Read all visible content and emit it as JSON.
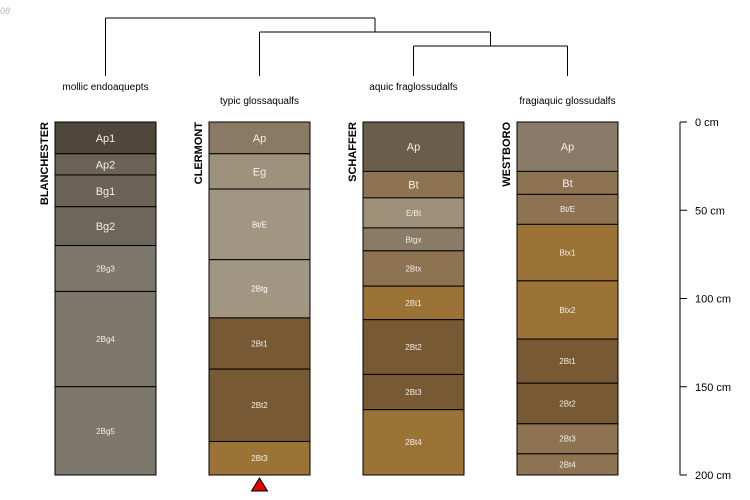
{
  "corner_label": "08",
  "chart_data": {
    "type": "soil-profile-sketch",
    "depth_unit": "cm",
    "depth_axis": {
      "min": 0,
      "max": 200,
      "ticks": [
        0,
        50,
        100,
        150,
        200
      ],
      "tick_labels": [
        "0 cm",
        "50 cm",
        "100 cm",
        "150 cm",
        "200 cm"
      ]
    },
    "dendrogram_order": [
      "BLANCHESTER",
      "CLERMONT",
      "SCHAFFER",
      "WESTBORO"
    ],
    "dendrogram_merges": [
      [
        "SCHAFFER",
        "WESTBORO"
      ],
      [
        "CLERMONT",
        "SCHAFFER+WESTBORO"
      ],
      [
        "BLANCHESTER",
        "CLERMONT+SCHAFFER+WESTBORO"
      ]
    ],
    "marker": {
      "profile": "CLERMONT",
      "shape": "triangle",
      "color": "#e00000"
    },
    "profiles": [
      {
        "name": "BLANCHESTER",
        "taxon": "mollic endoaquepts",
        "horizons": [
          {
            "name": "Ap1",
            "top": 0,
            "bottom": 18,
            "color": "#4f473a"
          },
          {
            "name": "Ap2",
            "top": 18,
            "bottom": 30,
            "color": "#6a6356"
          },
          {
            "name": "Bg1",
            "top": 30,
            "bottom": 48,
            "color": "#6a6356"
          },
          {
            "name": "Bg2",
            "top": 48,
            "bottom": 70,
            "color": "#6d665b"
          },
          {
            "name": "2Bg3",
            "top": 70,
            "bottom": 96,
            "color": "#7d786c"
          },
          {
            "name": "2Bg4",
            "top": 96,
            "bottom": 150,
            "color": "#7d786c"
          },
          {
            "name": "2Bg5",
            "top": 150,
            "bottom": 200,
            "color": "#7d786c"
          }
        ]
      },
      {
        "name": "CLERMONT",
        "taxon": "typic glossaqualfs",
        "horizons": [
          {
            "name": "Ap",
            "top": 0,
            "bottom": 18,
            "color": "#8a7a63"
          },
          {
            "name": "Eg",
            "top": 18,
            "bottom": 38,
            "color": "#9e927c"
          },
          {
            "name": "Bt/E",
            "top": 38,
            "bottom": 78,
            "color": "#a09682"
          },
          {
            "name": "2Btg",
            "top": 78,
            "bottom": 111,
            "color": "#a09682"
          },
          {
            "name": "2Bt1",
            "top": 111,
            "bottom": 140,
            "color": "#775934"
          },
          {
            "name": "2Bt2",
            "top": 140,
            "bottom": 181,
            "color": "#775934"
          },
          {
            "name": "2Bt3",
            "top": 181,
            "bottom": 200,
            "color": "#9c7336"
          }
        ]
      },
      {
        "name": "SCHAFFER",
        "taxon": "aquic fraglossudalfs",
        "horizons": [
          {
            "name": "Ap",
            "top": 0,
            "bottom": 28,
            "color": "#6b5d4b"
          },
          {
            "name": "Bt",
            "top": 28,
            "bottom": 43,
            "color": "#8e7353"
          },
          {
            "name": "E/Bt",
            "top": 43,
            "bottom": 60,
            "color": "#9f9179"
          },
          {
            "name": "Btgx",
            "top": 60,
            "bottom": 73,
            "color": "#8a7b66"
          },
          {
            "name": "2Btx",
            "top": 73,
            "bottom": 93,
            "color": "#8e7353"
          },
          {
            "name": "2Bt1",
            "top": 93,
            "bottom": 112,
            "color": "#9c7336"
          },
          {
            "name": "2Bt2",
            "top": 112,
            "bottom": 143,
            "color": "#775934"
          },
          {
            "name": "2Bt3",
            "top": 143,
            "bottom": 163,
            "color": "#775934"
          },
          {
            "name": "2Bt4",
            "top": 163,
            "bottom": 200,
            "color": "#9c7336"
          }
        ]
      },
      {
        "name": "WESTBORO",
        "taxon": "fragiaquic glossudalfs",
        "horizons": [
          {
            "name": "Ap",
            "top": 0,
            "bottom": 28,
            "color": "#8a7a68"
          },
          {
            "name": "Bt",
            "top": 28,
            "bottom": 41,
            "color": "#8e7353"
          },
          {
            "name": "Bt/E",
            "top": 41,
            "bottom": 58,
            "color": "#8e7353"
          },
          {
            "name": "Btx1",
            "top": 58,
            "bottom": 90,
            "color": "#9c7336"
          },
          {
            "name": "Btx2",
            "top": 90,
            "bottom": 123,
            "color": "#9c7336"
          },
          {
            "name": "2Bt1",
            "top": 123,
            "bottom": 148,
            "color": "#775934"
          },
          {
            "name": "2Bt2",
            "top": 148,
            "bottom": 171,
            "color": "#775934"
          },
          {
            "name": "2Bt3",
            "top": 171,
            "bottom": 188,
            "color": "#8e7353"
          },
          {
            "name": "2Bt4",
            "top": 188,
            "bottom": 200,
            "color": "#8e7353"
          }
        ]
      }
    ]
  }
}
